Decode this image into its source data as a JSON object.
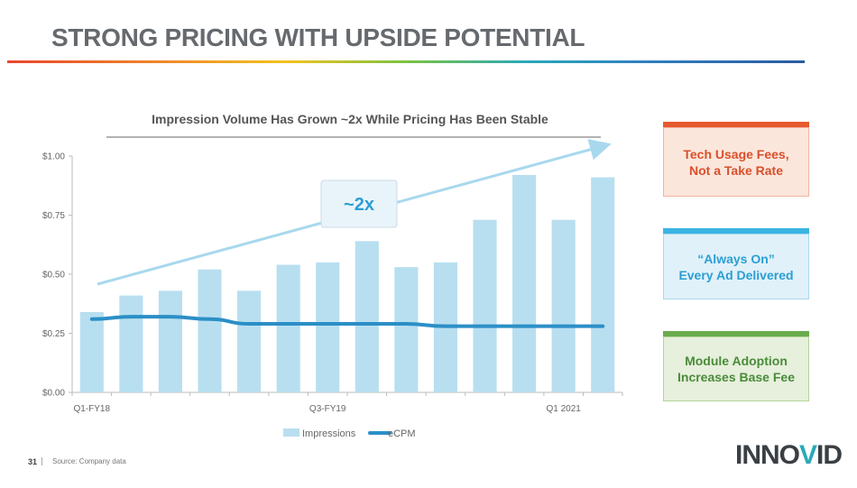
{
  "page": {
    "title": "STRONG PRICING WITH UPSIDE POTENTIAL",
    "page_number": "31",
    "source": "Source: Company data",
    "logo_text": "INNOVID"
  },
  "callouts": [
    {
      "text_line1": "Tech Usage Fees,",
      "text_line2": "Not a Take Rate",
      "color": "#d9502b"
    },
    {
      "text_line1": "“Always On”",
      "text_line2": "Every Ad Delivered",
      "color": "#2b9ed2"
    },
    {
      "text_line1": "Module Adoption",
      "text_line2": "Increases Base Fee",
      "color": "#4a8b3a"
    }
  ],
  "chart_data": {
    "type": "bar",
    "title": "Impression Volume Has Grown ~2x While Pricing Has Been Stable",
    "annotation": "~2x",
    "categories": [
      "Q1-FY18",
      "",
      "",
      "",
      "",
      "",
      "Q3-FY19",
      "",
      "",
      "",
      "",
      "",
      "Q1 2021",
      ""
    ],
    "series": [
      {
        "name": "Impressions",
        "type": "bar",
        "color": "#b8dff0",
        "values": [
          0.34,
          0.41,
          0.43,
          0.52,
          0.43,
          0.54,
          0.55,
          0.64,
          0.53,
          0.55,
          0.73,
          0.92,
          0.73,
          0.91
        ]
      },
      {
        "name": "eCPM",
        "type": "line",
        "color": "#2b8fc6",
        "values": [
          0.31,
          0.32,
          0.32,
          0.31,
          0.29,
          0.29,
          0.29,
          0.29,
          0.29,
          0.28,
          0.28,
          0.28,
          0.28,
          0.28
        ]
      }
    ],
    "y_ticks": [
      "$1.00",
      "$0.75",
      "$0.50",
      "$0.25",
      "$0.00"
    ],
    "ylim": [
      0,
      1.0
    ],
    "legend": "bottom",
    "grid": false
  }
}
